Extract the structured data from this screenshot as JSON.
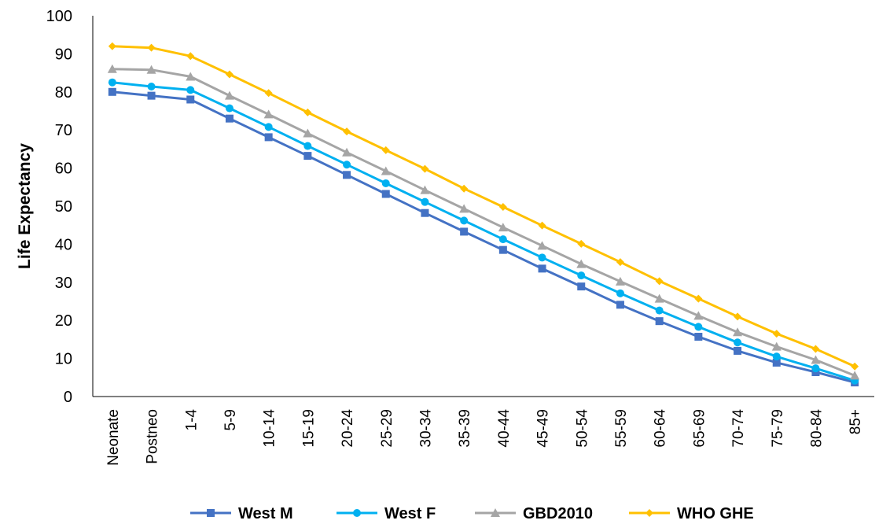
{
  "chart_data": {
    "type": "line",
    "title": "",
    "xlabel": "",
    "ylabel": "Life Expectancy",
    "ylim": [
      0,
      100
    ],
    "yticks": [
      0,
      10,
      20,
      30,
      40,
      50,
      60,
      70,
      80,
      90,
      100
    ],
    "grid": false,
    "legend_position": "bottom",
    "categories": [
      "Neonate",
      "Postneo",
      "1-4",
      "5-9",
      "10-14",
      "15-19",
      "20-24",
      "25-29",
      "30-34",
      "35-39",
      "40-44",
      "45-49",
      "50-54",
      "55-59",
      "60-64",
      "65-69",
      "70-74",
      "75-79",
      "80-84",
      "85+"
    ],
    "series": [
      {
        "name": "West M",
        "color": "#4472C4",
        "marker": "square",
        "values": [
          80,
          79,
          78,
          73,
          68.1,
          63.2,
          58.2,
          53.2,
          48.2,
          43.3,
          38.5,
          33.6,
          28.9,
          24.1,
          19.8,
          15.7,
          12,
          8.9,
          6.4,
          3.7
        ]
      },
      {
        "name": "West F",
        "color": "#00B0F0",
        "marker": "circle",
        "values": [
          82.5,
          81.4,
          80.5,
          75.7,
          70.8,
          65.8,
          60.9,
          56,
          51.1,
          46.2,
          41.3,
          36.5,
          31.8,
          27.1,
          22.6,
          18.3,
          14.2,
          10.5,
          7.4,
          4.2
        ]
      },
      {
        "name": "GBD2010",
        "color": "#A5A5A5",
        "marker": "triangle",
        "values": [
          86,
          85.8,
          84,
          79,
          74.1,
          69.1,
          64.1,
          59.2,
          54.2,
          49.3,
          44.4,
          39.6,
          34.8,
          30.2,
          25.7,
          21.2,
          16.9,
          13.1,
          9.6,
          5.5
        ]
      },
      {
        "name": "WHO GHE",
        "color": "#FFC000",
        "marker": "diamond",
        "values": [
          92,
          91.6,
          89.4,
          84.6,
          79.7,
          74.6,
          69.6,
          64.7,
          59.8,
          54.6,
          49.8,
          44.9,
          40.1,
          35.3,
          30.3,
          25.7,
          21,
          16.5,
          12.5,
          7.9
        ]
      }
    ]
  }
}
